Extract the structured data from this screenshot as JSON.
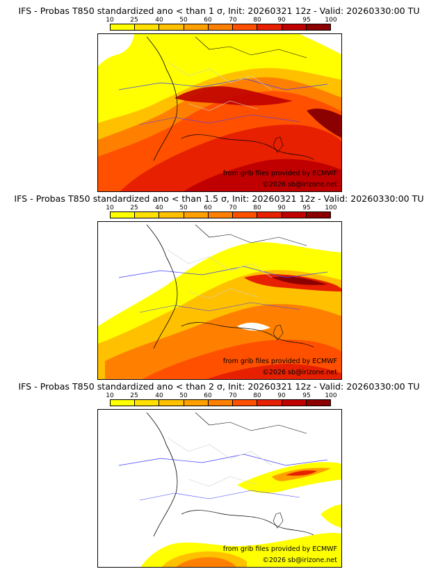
{
  "colorbar": {
    "labels": [
      "10",
      "25",
      "40",
      "50",
      "60",
      "70",
      "80",
      "90",
      "95",
      "100"
    ],
    "colors": [
      "#ffff00",
      "#ffe000",
      "#ffc000",
      "#ffa000",
      "#ff8000",
      "#ff5000",
      "#e62000",
      "#c00000",
      "#8b0000"
    ]
  },
  "panels": [
    {
      "title": "IFS - Probas T850  standardized ano < than 1 σ, Init: 20260321 12z - Valid: 20260330:00 TU",
      "credit_source": "from grib files provided by ECMWF",
      "credit_copyright": "©2026 sb@irizone.net"
    },
    {
      "title": "IFS - Probas T850  standardized ano < than 1.5 σ, Init: 20260321 12z - Valid: 20260330:00 TU",
      "credit_source": "from grib files provided by ECMWF",
      "credit_copyright": "©2026 sb@irizone.net"
    },
    {
      "title": "IFS - Probas T850  standardized ano < than 2 σ, Init: 20260321 12z - Valid: 20260330:00 TU",
      "credit_source": "from grib files provided by ECMWF",
      "credit_copyright": "©2026 sb@irizone.net"
    }
  ]
}
